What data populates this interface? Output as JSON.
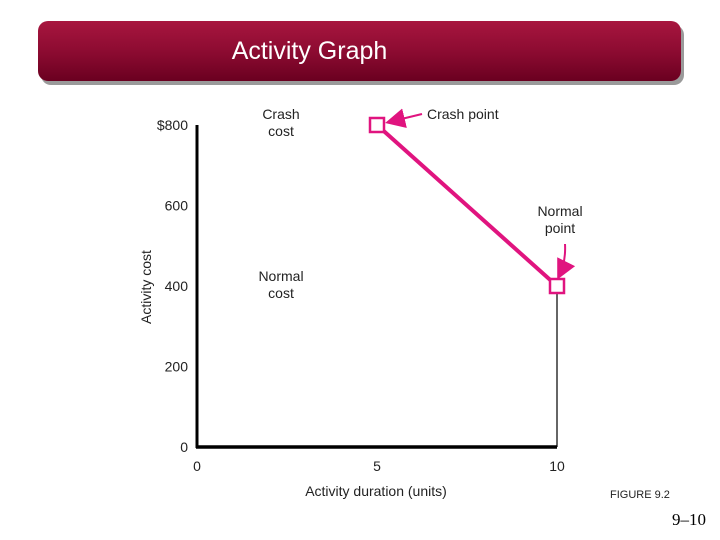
{
  "slide": {
    "title": "Activity Graph",
    "figure_label": "FIGURE 9.2",
    "page_number": "9–10"
  },
  "colors": {
    "accent": "#e0147f",
    "title_bar": "#8a0a30",
    "axis": "#000000"
  },
  "chart_data": {
    "type": "line",
    "title": "",
    "xlabel": "Activity duration (units)",
    "ylabel": "Activity cost",
    "xlim": [
      0,
      10
    ],
    "ylim": [
      0,
      800
    ],
    "x_ticks": [
      0,
      5,
      10
    ],
    "x_tick_labels": [
      "0",
      "5",
      "10"
    ],
    "y_ticks": [
      0,
      200,
      400,
      600,
      800
    ],
    "y_tick_labels": [
      "0",
      "200",
      "400",
      "600",
      "$800"
    ],
    "grid": false,
    "series": [
      {
        "x": [
          5,
          10
        ],
        "y": [
          800,
          400
        ],
        "color": "#e0147f"
      }
    ],
    "points": [
      {
        "label": "Crash point",
        "x": 5,
        "y": 800
      },
      {
        "label": "Normal\npoint",
        "x": 10,
        "y": 400
      }
    ],
    "annotations": [
      {
        "text": "Crash\ncost"
      },
      {
        "text": "Normal\ncost"
      }
    ]
  }
}
